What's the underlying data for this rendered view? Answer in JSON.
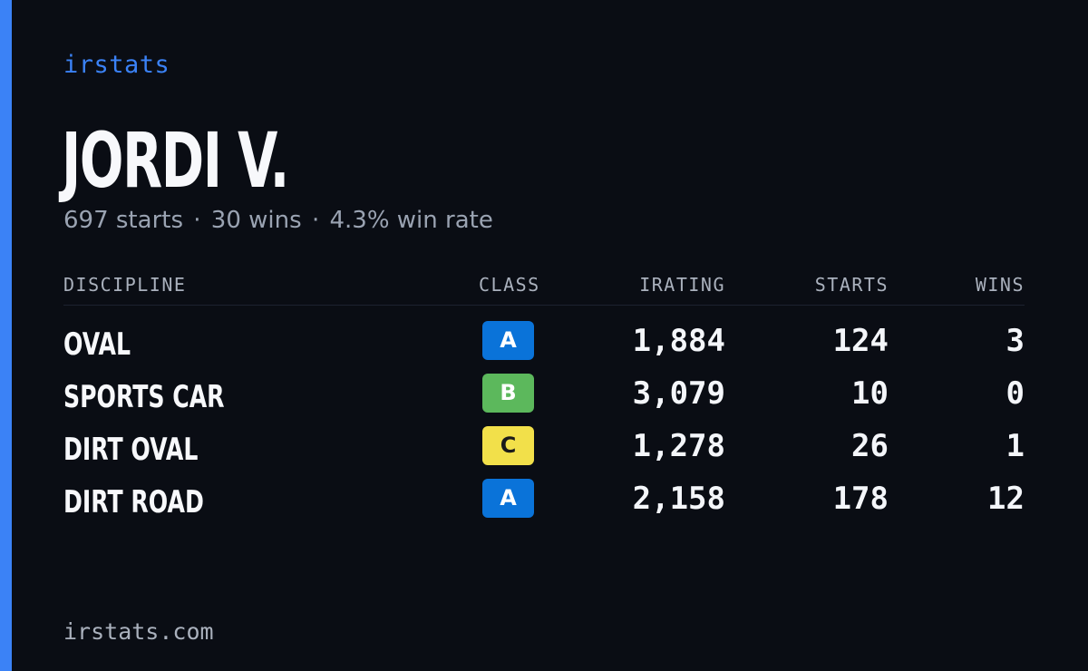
{
  "brand": "irstats",
  "player": {
    "name": "JORDI V.",
    "starts_text": "697 starts",
    "wins_text": "30 wins",
    "winrate_text": "4.3% win rate",
    "separator": "·"
  },
  "table": {
    "headers": {
      "discipline": "DISCIPLINE",
      "class": "CLASS",
      "irating": "IRATING",
      "starts": "STARTS",
      "wins": "WINS"
    },
    "rows": [
      {
        "discipline": "OVAL",
        "class": "A",
        "class_color": "#0a73d9",
        "class_text_color": "#ffffff",
        "irating": "1,884",
        "starts": "124",
        "wins": "3"
      },
      {
        "discipline": "SPORTS CAR",
        "class": "B",
        "class_color": "#5cb85c",
        "class_text_color": "#ffffff",
        "irating": "3,079",
        "starts": "10",
        "wins": "0"
      },
      {
        "discipline": "DIRT OVAL",
        "class": "C",
        "class_color": "#f2e04a",
        "class_text_color": "#1a1a1a",
        "irating": "1,278",
        "starts": "26",
        "wins": "1"
      },
      {
        "discipline": "DIRT ROAD",
        "class": "A",
        "class_color": "#0a73d9",
        "class_text_color": "#ffffff",
        "irating": "2,158",
        "starts": "178",
        "wins": "12"
      }
    ]
  },
  "footer": "irstats.com",
  "colors": {
    "background": "#0a0d14",
    "accent": "#3b82f6",
    "muted_text": "#9aa3b2"
  }
}
